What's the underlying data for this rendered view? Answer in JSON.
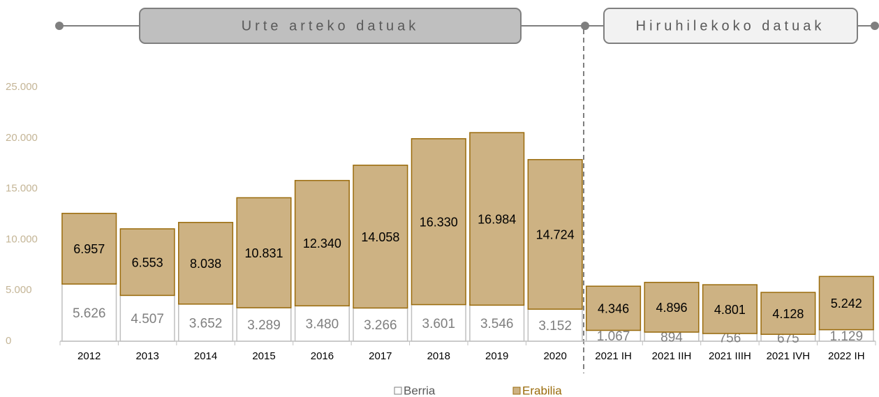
{
  "chart_data": {
    "type": "bar",
    "stacked": true,
    "annotations": [
      "Urte arteko datuak",
      "Hiruhilekoko datuak"
    ],
    "categories": [
      "2012",
      "2013",
      "2014",
      "2015",
      "2016",
      "2017",
      "2018",
      "2019",
      "2020",
      "2021 IH",
      "2021 IIH",
      "2021 IIIH",
      "2021 IVH",
      "2022 IH"
    ],
    "series": [
      {
        "name": "Berria",
        "color": "#ffffff",
        "edgecolor": "#bfbfbf",
        "values": [
          5626,
          4507,
          3652,
          3289,
          3480,
          3266,
          3601,
          3546,
          3152,
          1067,
          894,
          756,
          675,
          1129
        ],
        "value_labels": [
          "5.626",
          "4.507",
          "3.652",
          "3.289",
          "3.480",
          "3.266",
          "3.601",
          "3.546",
          "3.152",
          "1.067",
          "894",
          "756",
          "675",
          "1.129"
        ]
      },
      {
        "name": "Erabilia",
        "color": "#cdb283",
        "edgecolor": "#9a6b0b",
        "values": [
          6957,
          6553,
          8038,
          10831,
          12340,
          14058,
          16330,
          16984,
          14724,
          4346,
          4896,
          4801,
          4128,
          5242
        ],
        "value_labels": [
          "6.957",
          "6.553",
          "8.038",
          "10.831",
          "12.340",
          "14.058",
          "16.330",
          "16.984",
          "14.724",
          "4.346",
          "4.896",
          "4.801",
          "4.128",
          "5.242"
        ]
      }
    ],
    "ylim": [
      0,
      25000
    ],
    "yticks": [
      0,
      {
        "value": 5000,
        "label": "5.000"
      },
      {
        "value": 10000,
        "label": "10.000"
      },
      {
        "value": 15000,
        "label": "15.000"
      },
      {
        "value": 20000,
        "label": "20.000"
      },
      {
        "value": 25000,
        "label": "25.000"
      }
    ],
    "legend": "bottom"
  }
}
